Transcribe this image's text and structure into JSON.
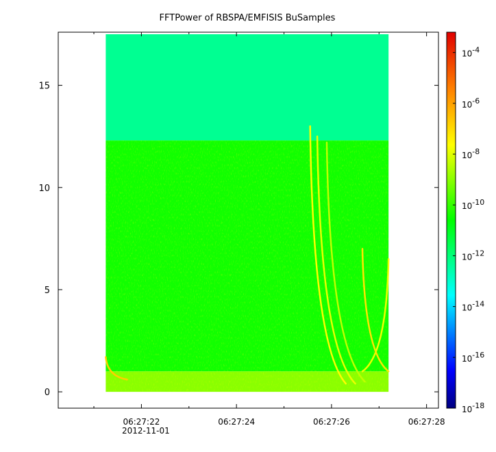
{
  "chart_data": {
    "type": "heatmap",
    "title": "FFTPower of RBSPA/EMFISIS  BuSamples",
    "xlabel": "",
    "ylabel": "",
    "x_range_seconds": [
      20.25,
      28.25
    ],
    "data_x_range_seconds": [
      21.25,
      27.2
    ],
    "ylim": [
      -0.8,
      17.6
    ],
    "data_y_range": [
      0,
      17.5
    ],
    "x_ticks_major": [
      {
        "value": 22,
        "label": "06:27:22"
      },
      {
        "value": 24,
        "label": "06:27:24"
      },
      {
        "value": 26,
        "label": "06:27:26"
      },
      {
        "value": 28,
        "label": "06:27:28"
      }
    ],
    "x_ticks_minor": [
      21,
      23,
      25,
      27
    ],
    "x_date_label": "2012-11-01",
    "y_ticks": [
      {
        "value": 0,
        "label": "0"
      },
      {
        "value": 5,
        "label": "5"
      },
      {
        "value": 10,
        "label": "10"
      },
      {
        "value": 15,
        "label": "15"
      }
    ],
    "colorbar": {
      "scale": "log",
      "range_exponent": [
        -18,
        -3.2
      ],
      "tick_exponents": [
        -4,
        -6,
        -8,
        -10,
        -12,
        -14,
        -16,
        -18
      ],
      "tick_base": "10",
      "colormap": "rainbow"
    },
    "background_levels": [
      {
        "y_range": [
          12.3,
          17.5
        ],
        "exponent": -12.3
      },
      {
        "y_range": [
          1.0,
          12.3
        ],
        "exponent": -10.4
      },
      {
        "y_range": [
          0,
          1.0
        ],
        "exponent": -9.0
      }
    ],
    "features": [
      {
        "name": "burst-1",
        "t_start": 25.55,
        "f_start": 13.0,
        "t_end": 26.3,
        "f_end": 0.4,
        "exponent": -7.6
      },
      {
        "name": "burst-1b",
        "t_start": 25.7,
        "f_start": 12.5,
        "t_end": 26.5,
        "f_end": 0.4,
        "exponent": -7.9
      },
      {
        "name": "burst-1c",
        "t_start": 25.9,
        "f_start": 12.2,
        "t_end": 26.7,
        "f_end": 0.5,
        "exponent": -8.4
      },
      {
        "name": "burst-2",
        "t_start": 27.2,
        "f_start": 6.5,
        "t_end": 26.65,
        "f_end": 1.0,
        "exponent": -7.8
      },
      {
        "name": "burst-2b",
        "t_start": 26.65,
        "f_start": 7.0,
        "t_end": 27.2,
        "f_end": 1.0,
        "exponent": -7.2
      },
      {
        "name": "burst-0",
        "t_start": 21.25,
        "f_start": 1.7,
        "t_end": 21.7,
        "f_end": 0.6,
        "exponent": -6.8
      }
    ]
  }
}
